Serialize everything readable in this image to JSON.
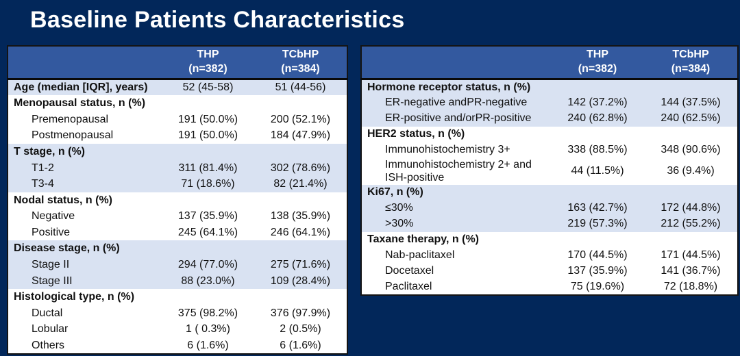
{
  "title": "Baseline Patients Characteristics",
  "colors": {
    "background": "#02275A",
    "header_bg": "#33599F",
    "header_text": "#FFFFFF",
    "row_blue": "#D9E2F2",
    "row_white": "#FFFFFF",
    "title_color": "#FFFFFF"
  },
  "left_table": {
    "header": {
      "col1": "THP",
      "col1_n": "(n=382)",
      "col2": "TCbHP",
      "col2_n": "(n=384)"
    },
    "rows": [
      {
        "label": "Age (median [IQR], years)",
        "bold": true,
        "indent": false,
        "band": "blue",
        "v1": "52 (45-58)",
        "v2": "51 (44-56)"
      },
      {
        "label": "Menopausal status, n (%)",
        "bold": true,
        "indent": false,
        "band": "white",
        "v1": "",
        "v2": ""
      },
      {
        "label": "Premenopausal",
        "bold": false,
        "indent": true,
        "band": "white",
        "v1": "191 (50.0%)",
        "v2": "200 (52.1%)"
      },
      {
        "label": "Postmenopausal",
        "bold": false,
        "indent": true,
        "band": "white",
        "v1": "191 (50.0%)",
        "v2": "184 (47.9%)"
      },
      {
        "label": "T stage, n (%)",
        "bold": true,
        "indent": false,
        "band": "blue",
        "v1": "",
        "v2": ""
      },
      {
        "label": "T1-2",
        "bold": false,
        "indent": true,
        "band": "blue",
        "v1": "311 (81.4%)",
        "v2": "302 (78.6%)"
      },
      {
        "label": "T3-4",
        "bold": false,
        "indent": true,
        "band": "blue",
        "v1": "71 (18.6%)",
        "v2": "82 (21.4%)"
      },
      {
        "label": "Nodal status, n (%)",
        "bold": true,
        "indent": false,
        "band": "white",
        "v1": "",
        "v2": ""
      },
      {
        "label": "Negative",
        "bold": false,
        "indent": true,
        "band": "white",
        "v1": "137 (35.9%)",
        "v2": "138 (35.9%)"
      },
      {
        "label": "Positive",
        "bold": false,
        "indent": true,
        "band": "white",
        "v1": "245 (64.1%)",
        "v2": "246 (64.1%)"
      },
      {
        "label": "Disease stage, n (%)",
        "bold": true,
        "indent": false,
        "band": "blue",
        "v1": "",
        "v2": ""
      },
      {
        "label": "Stage II",
        "bold": false,
        "indent": true,
        "band": "blue",
        "v1": "294 (77.0%)",
        "v2": "275 (71.6%)"
      },
      {
        "label": "Stage III",
        "bold": false,
        "indent": true,
        "band": "blue",
        "v1": "88 (23.0%)",
        "v2": "109 (28.4%)"
      },
      {
        "label": "Histological type, n (%)",
        "bold": true,
        "indent": false,
        "band": "white",
        "v1": "",
        "v2": ""
      },
      {
        "label": "Ductal",
        "bold": false,
        "indent": true,
        "band": "white",
        "v1": "375 (98.2%)",
        "v2": "376 (97.9%)"
      },
      {
        "label": "Lobular",
        "bold": false,
        "indent": true,
        "band": "white",
        "v1": "1 ( 0.3%)",
        "v2": "2 (0.5%)"
      },
      {
        "label": "Others",
        "bold": false,
        "indent": true,
        "band": "white",
        "v1": "6 (1.6%)",
        "v2": "6 (1.6%)"
      }
    ]
  },
  "right_table": {
    "header": {
      "col1": "THP",
      "col1_n": "(n=382)",
      "col2": "TCbHP",
      "col2_n": "(n=384)"
    },
    "rows": [
      {
        "label": "Hormone receptor status, n (%)",
        "bold": true,
        "indent": false,
        "band": "blue",
        "v1": "",
        "v2": ""
      },
      {
        "label": "ER-negative andPR-negative",
        "bold": false,
        "indent": true,
        "band": "blue",
        "v1": "142 (37.2%)",
        "v2": "144 (37.5%)"
      },
      {
        "label": "ER-positive and/orPR-positive",
        "bold": false,
        "indent": true,
        "band": "blue",
        "v1": "240 (62.8%)",
        "v2": "240 (62.5%)"
      },
      {
        "label": "HER2 status, n (%)",
        "bold": true,
        "indent": false,
        "band": "white",
        "v1": "",
        "v2": ""
      },
      {
        "label": "Immunohistochemistry 3+",
        "bold": false,
        "indent": true,
        "band": "white",
        "v1": "338 (88.5%)",
        "v2": "348 (90.6%)"
      },
      {
        "label": "Immunohistochemistry 2+ and",
        "label2": "ISH-positive",
        "bold": false,
        "indent": true,
        "band": "white",
        "v1": "44 (11.5%)",
        "v2": "36 (9.4%)"
      },
      {
        "label": "Ki67, n (%)",
        "bold": true,
        "indent": false,
        "band": "blue",
        "v1": "",
        "v2": ""
      },
      {
        "label": "≤30%",
        "bold": false,
        "indent": true,
        "band": "blue",
        "v1": "163 (42.7%)",
        "v2": "172 (44.8%)"
      },
      {
        "label": ">30%",
        "bold": false,
        "indent": true,
        "band": "blue",
        "v1": "219 (57.3%)",
        "v2": "212 (55.2%)"
      },
      {
        "label": "Taxane therapy, n (%)",
        "bold": true,
        "indent": false,
        "band": "white",
        "v1": "",
        "v2": ""
      },
      {
        "label": "Nab-paclitaxel",
        "bold": false,
        "indent": true,
        "band": "white",
        "v1": "170 (44.5%)",
        "v2": "171 (44.5%)"
      },
      {
        "label": "Docetaxel",
        "bold": false,
        "indent": true,
        "band": "white",
        "v1": "137 (35.9%)",
        "v2": "141 (36.7%)"
      },
      {
        "label": "Paclitaxel",
        "bold": false,
        "indent": true,
        "band": "white",
        "v1": "75 (19.6%)",
        "v2": "72 (18.8%)"
      }
    ]
  }
}
